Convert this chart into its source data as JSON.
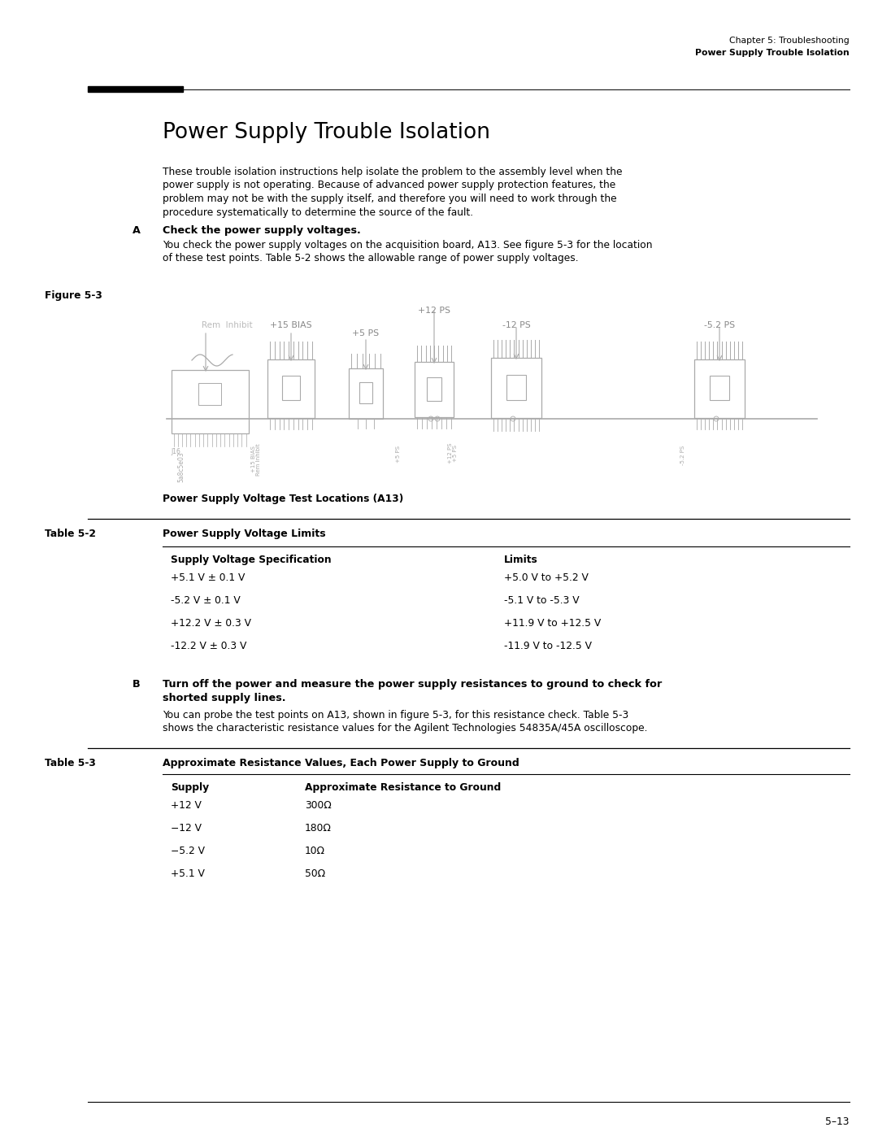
{
  "page_bg": "#ffffff",
  "header_line1": "Chapter 5: Troubleshooting",
  "header_line2": "Power Supply Trouble Isolation",
  "section_title": "Power Supply Trouble Isolation",
  "intro_text": "These trouble isolation instructions help isolate the problem to the assembly level when the\npower supply is not operating. Because of advanced power supply protection features, the\nproblem may not be with the supply itself, and therefore you will need to work through the\nprocedure systematically to determine the source of the fault.",
  "step_a_label": "A",
  "step_a_heading": "Check the power supply voltages.",
  "step_a_text": "You check the power supply voltages on the acquisition board, A13. See figure 5-3 for the location\nof these test points. Table 5-2 shows the allowable range of power supply voltages.",
  "figure_label": "Figure 5-3",
  "figure_caption": "Power Supply Voltage Test Locations (A13)",
  "table2_label": "Table 5-2",
  "table2_title": "Power Supply Voltage Limits",
  "table2_col1": "Supply Voltage Specification",
  "table2_col2": "Limits",
  "table2_rows": [
    [
      "+5.1 V ± 0.1 V",
      "+5.0 V to +5.2 V"
    ],
    [
      "-5.2 V ± 0.1 V",
      "-5.1 V to -5.3 V"
    ],
    [
      "+12.2 V ± 0.3 V",
      "+11.9 V to +12.5 V"
    ],
    [
      "-12.2 V ± 0.3 V",
      "-11.9 V to -12.5 V"
    ]
  ],
  "step_b_label": "B",
  "step_b_heading": "Turn off the power and measure the power supply resistances to ground to check for\nshorted supply lines.",
  "step_b_text": "You can probe the test points on A13, shown in figure 5-3, for this resistance check. Table 5-3\nshows the characteristic resistance values for the Agilent Technologies 54835A/45A oscilloscope.",
  "table3_label": "Table 5-3",
  "table3_title": "Approximate Resistance Values, Each Power Supply to Ground",
  "table3_col1": "Supply",
  "table3_col2": "Approximate Resistance to Ground",
  "table3_rows": [
    [
      "+12 V",
      "300Ω"
    ],
    [
      "−12 V",
      "180Ω"
    ],
    [
      "−5.2 V",
      "10Ω"
    ],
    [
      "+5.1 V",
      "50Ω"
    ]
  ],
  "page_number": "5–13"
}
